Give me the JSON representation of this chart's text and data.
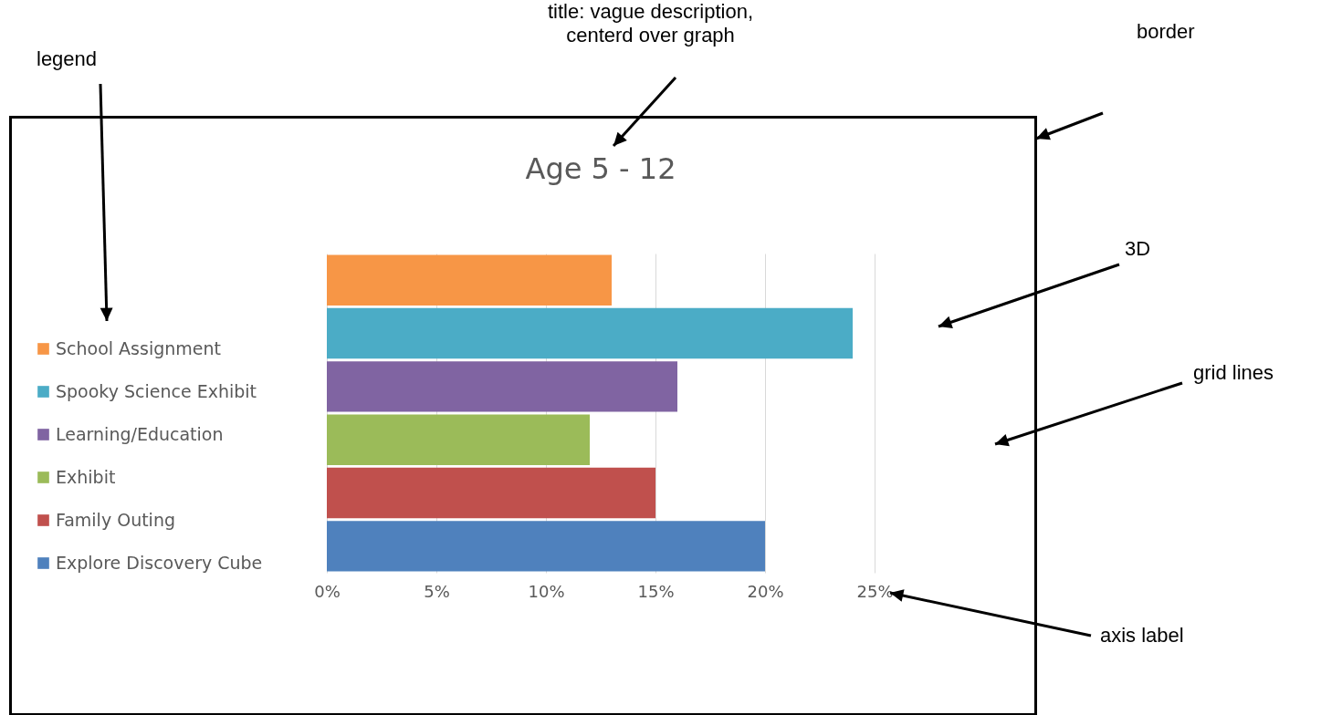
{
  "chart_data": {
    "type": "bar",
    "orientation": "horizontal",
    "stacked": true,
    "title": "Age 5 - 12",
    "categories": [
      null,
      null,
      null,
      null,
      null,
      null
    ],
    "series": [
      {
        "name": "School Assignment",
        "color": "#f79646",
        "values": [
          13,
          null,
          null,
          null,
          null,
          null
        ]
      },
      {
        "name": "Spooky Science Exhibit",
        "color": "#4bacc6",
        "values": [
          null,
          24,
          null,
          null,
          null,
          null
        ]
      },
      {
        "name": "Learning/Education",
        "color": "#8064a2",
        "values": [
          null,
          null,
          16,
          null,
          null,
          null
        ]
      },
      {
        "name": "Exhibit",
        "color": "#9bbb59",
        "values": [
          null,
          null,
          null,
          12,
          null,
          null
        ]
      },
      {
        "name": "Family Outing",
        "color": "#c0504d",
        "values": [
          null,
          null,
          null,
          null,
          15,
          null
        ]
      },
      {
        "name": "Explore Discovery Cube",
        "color": "#4f81bd",
        "values": [
          null,
          null,
          null,
          null,
          null,
          20
        ]
      }
    ],
    "xlim": [
      0,
      25
    ],
    "xticks": [
      {
        "value": 0,
        "label": "0%"
      },
      {
        "value": 5,
        "label": "5%"
      },
      {
        "value": 10,
        "label": "10%"
      },
      {
        "value": 15,
        "label": "15%"
      },
      {
        "value": 20,
        "label": "20%"
      },
      {
        "value": 25,
        "label": "25%"
      }
    ],
    "grid": "x",
    "legend": "left",
    "tick_labels": "x",
    "annotations": [
      "legend",
      "title: vague description,\ncenterd over graph",
      "border",
      "3D",
      "grid lines",
      "axis label"
    ]
  }
}
